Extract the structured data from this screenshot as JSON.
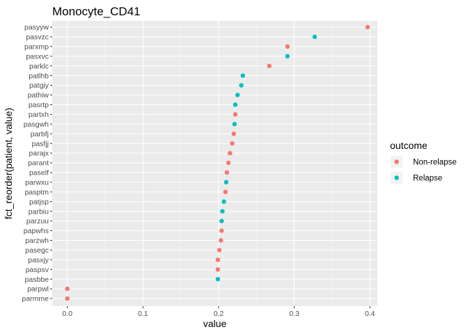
{
  "chart_data": {
    "type": "scatter",
    "title": "Monocyte_CD41",
    "xlabel": "value",
    "ylabel": "fct_reorder(patient, value)",
    "xlim": [
      -0.02,
      0.41
    ],
    "xticks": [
      0.0,
      0.1,
      0.2,
      0.3,
      0.4
    ],
    "xtick_labels": [
      "0.0",
      "0.1",
      "0.2",
      "0.3",
      "0.4"
    ],
    "grid": true,
    "legend": {
      "title": "outcome",
      "position": "right",
      "entries": [
        {
          "name": "Non-relapse",
          "color": "#F8766D"
        },
        {
          "name": "Relapse",
          "color": "#00BFC4"
        }
      ]
    },
    "points": [
      {
        "patient": "pasyyw",
        "value": 0.397,
        "outcome": "Non-relapse"
      },
      {
        "patient": "pasvzc",
        "value": 0.327,
        "outcome": "Relapse"
      },
      {
        "patient": "parxmp",
        "value": 0.291,
        "outcome": "Non-relapse"
      },
      {
        "patient": "pasxvc",
        "value": 0.291,
        "outcome": "Relapse"
      },
      {
        "patient": "parklc",
        "value": 0.267,
        "outcome": "Non-relapse"
      },
      {
        "patient": "patlhb",
        "value": 0.232,
        "outcome": "Relapse"
      },
      {
        "patient": "patgiy",
        "value": 0.23,
        "outcome": "Relapse"
      },
      {
        "patient": "pathiw",
        "value": 0.225,
        "outcome": "Relapse"
      },
      {
        "patient": "pasrtp",
        "value": 0.222,
        "outcome": "Relapse"
      },
      {
        "patient": "partxh",
        "value": 0.222,
        "outcome": "Non-relapse"
      },
      {
        "patient": "pasgwh",
        "value": 0.221,
        "outcome": "Relapse"
      },
      {
        "patient": "parbfj",
        "value": 0.22,
        "outcome": "Non-relapse"
      },
      {
        "patient": "pasfjj",
        "value": 0.218,
        "outcome": "Non-relapse"
      },
      {
        "patient": "parajx",
        "value": 0.215,
        "outcome": "Non-relapse"
      },
      {
        "patient": "parant",
        "value": 0.213,
        "outcome": "Non-relapse"
      },
      {
        "patient": "paself",
        "value": 0.211,
        "outcome": "Non-relapse"
      },
      {
        "patient": "parwxu",
        "value": 0.21,
        "outcome": "Relapse"
      },
      {
        "patient": "pasptm",
        "value": 0.209,
        "outcome": "Non-relapse"
      },
      {
        "patient": "patjsp",
        "value": 0.207,
        "outcome": "Relapse"
      },
      {
        "patient": "parbiu",
        "value": 0.205,
        "outcome": "Relapse"
      },
      {
        "patient": "parzuu",
        "value": 0.204,
        "outcome": "Relapse"
      },
      {
        "patient": "papwhs",
        "value": 0.204,
        "outcome": "Non-relapse"
      },
      {
        "patient": "parzwh",
        "value": 0.203,
        "outcome": "Non-relapse"
      },
      {
        "patient": "pasegc",
        "value": 0.201,
        "outcome": "Non-relapse"
      },
      {
        "patient": "pasxjy",
        "value": 0.199,
        "outcome": "Non-relapse"
      },
      {
        "patient": "paspsv",
        "value": 0.199,
        "outcome": "Non-relapse"
      },
      {
        "patient": "pasbbe",
        "value": 0.199,
        "outcome": "Relapse"
      },
      {
        "patient": "parpwl",
        "value": 0.0,
        "outcome": "Non-relapse"
      },
      {
        "patient": "parmme",
        "value": 0.0,
        "outcome": "Non-relapse"
      }
    ]
  }
}
